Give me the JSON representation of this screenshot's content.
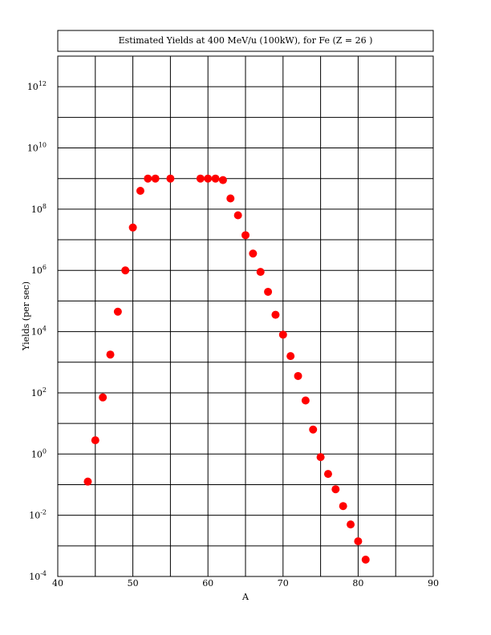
{
  "chart_data": {
    "type": "scatter",
    "title": "Estimated Yields at 400 MeV/u (100kW), for Fe (Z = 26 )",
    "xlabel": "A",
    "ylabel": "Yields (per sec)",
    "xlim": [
      40,
      90
    ],
    "ylim": [
      -4,
      13
    ],
    "y_scale": "log",
    "x_ticks": [
      40,
      50,
      60,
      70,
      80,
      90
    ],
    "y_tick_exponents": [
      -4,
      -2,
      0,
      2,
      4,
      6,
      8,
      10,
      12
    ],
    "grid": true,
    "marker_color": "#ff0000",
    "points": [
      {
        "A": 44,
        "log10_yield": -0.9
      },
      {
        "A": 45,
        "log10_yield": 0.45
      },
      {
        "A": 46,
        "log10_yield": 1.85
      },
      {
        "A": 47,
        "log10_yield": 3.25
      },
      {
        "A": 48,
        "log10_yield": 4.65
      },
      {
        "A": 49,
        "log10_yield": 6.0
      },
      {
        "A": 50,
        "log10_yield": 7.4
      },
      {
        "A": 51,
        "log10_yield": 8.6
      },
      {
        "A": 52,
        "log10_yield": 9.0
      },
      {
        "A": 53,
        "log10_yield": 9.0
      },
      {
        "A": 55,
        "log10_yield": 9.0
      },
      {
        "A": 59,
        "log10_yield": 9.0
      },
      {
        "A": 60,
        "log10_yield": 9.0
      },
      {
        "A": 61,
        "log10_yield": 9.0
      },
      {
        "A": 62,
        "log10_yield": 8.95
      },
      {
        "A": 63,
        "log10_yield": 8.35
      },
      {
        "A": 64,
        "log10_yield": 7.8
      },
      {
        "A": 65,
        "log10_yield": 7.15
      },
      {
        "A": 66,
        "log10_yield": 6.55
      },
      {
        "A": 67,
        "log10_yield": 5.95
      },
      {
        "A": 68,
        "log10_yield": 5.3
      },
      {
        "A": 69,
        "log10_yield": 4.55
      },
      {
        "A": 70,
        "log10_yield": 3.9
      },
      {
        "A": 71,
        "log10_yield": 3.2
      },
      {
        "A": 72,
        "log10_yield": 2.55
      },
      {
        "A": 73,
        "log10_yield": 1.75
      },
      {
        "A": 74,
        "log10_yield": 0.8
      },
      {
        "A": 75,
        "log10_yield": -0.1
      },
      {
        "A": 76,
        "log10_yield": -0.65
      },
      {
        "A": 77,
        "log10_yield": -1.15
      },
      {
        "A": 78,
        "log10_yield": -1.7
      },
      {
        "A": 79,
        "log10_yield": -2.3
      },
      {
        "A": 80,
        "log10_yield": -2.85
      },
      {
        "A": 81,
        "log10_yield": -3.45
      }
    ]
  }
}
